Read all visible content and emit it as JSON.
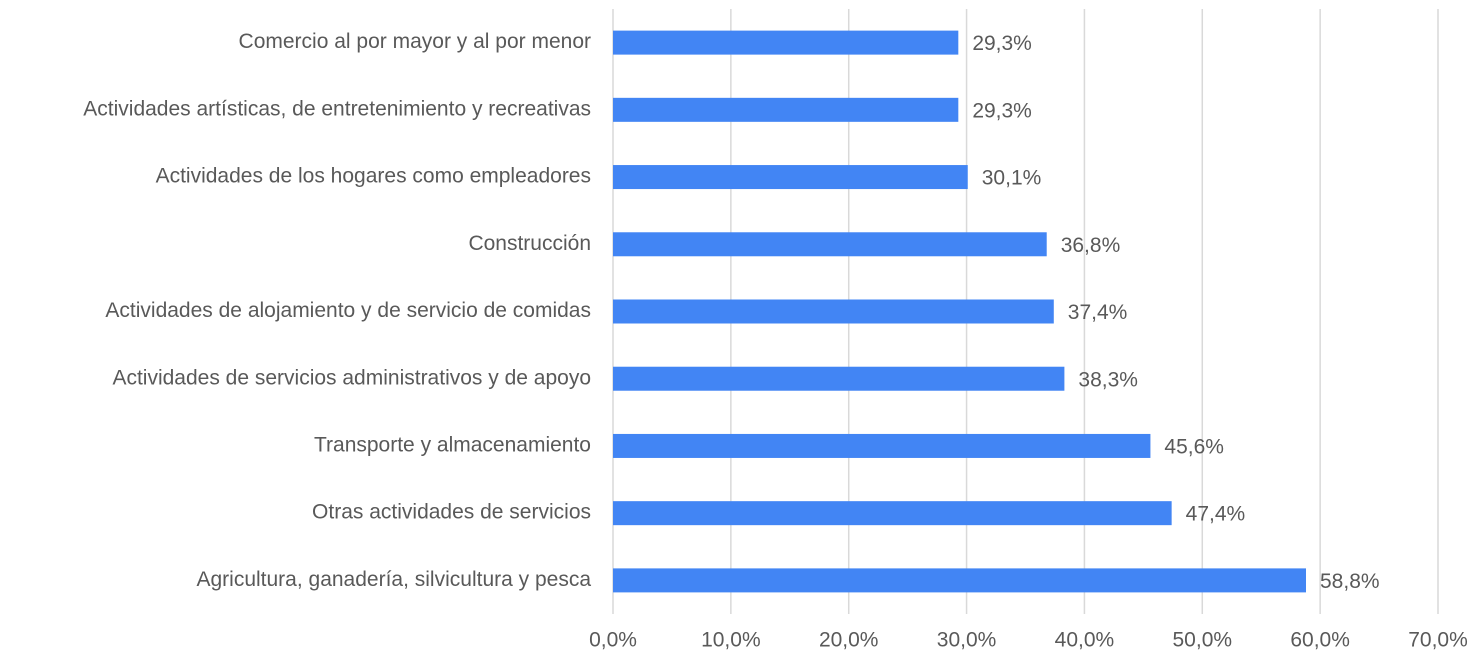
{
  "chart_data": {
    "type": "hbar",
    "categories": [
      "Comercio al por mayor y al por menor",
      "Actividades artísticas, de entretenimiento y recreativas",
      "Actividades de los hogares como empleadores",
      "Construcción",
      "Actividades de alojamiento y de servicio de comidas",
      "Actividades de servicios administrativos y de apoyo",
      "Transporte y almacenamiento",
      "Otras actividades de servicios",
      "Agricultura, ganadería, silvicultura y pesca"
    ],
    "values": [
      29.3,
      29.3,
      30.1,
      36.8,
      37.4,
      38.3,
      45.6,
      47.4,
      58.8
    ],
    "value_labels": [
      "29,3%",
      "29,3%",
      "30,1%",
      "36,8%",
      "37,4%",
      "38,3%",
      "45,6%",
      "47,4%",
      "58,8%"
    ],
    "color": "#4285f4",
    "xlim": [
      0,
      70
    ],
    "xticks": [
      {
        "value": 0,
        "label": "0,0%"
      },
      {
        "value": 10,
        "label": "10,0%"
      },
      {
        "value": 20,
        "label": "20,0%"
      },
      {
        "value": 30,
        "label": "30,0%"
      },
      {
        "value": 40,
        "label": "40,0%"
      },
      {
        "value": 50,
        "label": "50,0%"
      },
      {
        "value": 60,
        "label": "60,0%"
      },
      {
        "value": 70,
        "label": "70,0%"
      }
    ],
    "grid": true
  }
}
